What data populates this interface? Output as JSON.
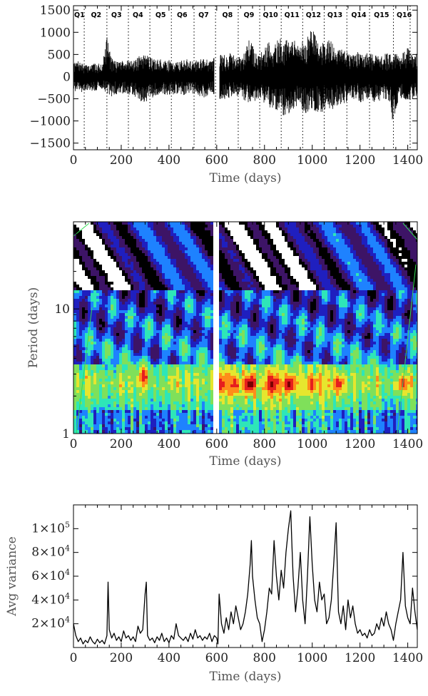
{
  "chart_data": [
    {
      "type": "line",
      "title": "",
      "xlabel": "Time (days)",
      "ylabel": "",
      "xlim": [
        0,
        1440
      ],
      "ylim": [
        -1650,
        1600
      ],
      "x_ticks": [
        0,
        200,
        400,
        600,
        800,
        1000,
        1200,
        1400
      ],
      "x_tick_labels": [
        "0",
        "200",
        "400",
        "600",
        "800",
        "1000",
        "1200",
        "1400"
      ],
      "y_ticks": [
        -1500,
        -1000,
        -500,
        0,
        500,
        1000,
        1500
      ],
      "y_tick_labels": [
        "−1500",
        "−1000",
        "−500",
        "0",
        "500",
        "1000",
        "1500"
      ],
      "quarter_boundaries": [
        45,
        140,
        230,
        320,
        410,
        505,
        595,
        690,
        780,
        870,
        960,
        1050,
        1145,
        1240,
        1340,
        1410
      ],
      "quarter_labels": [
        "Q1",
        "Q2",
        "Q3",
        "Q4",
        "Q5",
        "Q6",
        "Q7",
        "Q8",
        "Q9",
        "Q10",
        "Q11",
        "Q12",
        "Q13",
        "Q14",
        "Q15",
        "Q16"
      ],
      "quarter_label_x": [
        25,
        95,
        180,
        270,
        365,
        455,
        545,
        645,
        735,
        825,
        915,
        1005,
        1095,
        1195,
        1290,
        1385
      ],
      "series": [
        {
          "x": [
            0,
            20,
            40,
            60,
            80,
            100,
            120,
            140,
            160,
            180,
            200,
            220,
            240,
            260,
            280,
            300,
            320,
            340,
            360,
            380,
            400,
            420,
            440,
            460,
            480,
            500,
            520,
            540,
            560,
            580,
            600,
            620,
            640,
            660,
            680,
            700,
            720,
            740,
            760,
            780,
            800,
            820,
            840,
            860,
            880,
            900,
            920,
            940,
            960,
            980,
            1000,
            1020,
            1040,
            1060,
            1080,
            1100,
            1120,
            1140,
            1160,
            1180,
            1200,
            1220,
            1240,
            1260,
            1280,
            1300,
            1320,
            1340,
            1360,
            1380,
            1400,
            1420,
            1440
          ],
          "y_max": [
            300,
            350,
            280,
            260,
            300,
            280,
            320,
            900,
            420,
            350,
            380,
            400,
            350,
            380,
            500,
            650,
            450,
            380,
            400,
            350,
            380,
            320,
            350,
            380,
            400,
            350,
            380,
            450,
            400,
            350,
            550,
            500,
            480,
            550,
            420,
            500,
            600,
            900,
            550,
            500,
            650,
            800,
            750,
            850,
            900,
            800,
            850,
            750,
            800,
            900,
            1150,
            850,
            800,
            900,
            850,
            700,
            700,
            600,
            550,
            500,
            600,
            550,
            500,
            550,
            450,
            500,
            550,
            550,
            500,
            600,
            650,
            500,
            550
          ],
          "y_min": [
            -350,
            -300,
            -400,
            -300,
            -350,
            -300,
            -280,
            -380,
            -450,
            -400,
            -380,
            -400,
            -420,
            -500,
            -550,
            -600,
            -500,
            -450,
            -400,
            -450,
            -420,
            -400,
            -380,
            -420,
            -400,
            -380,
            -400,
            -500,
            -450,
            -400,
            -450,
            -550,
            -500,
            -480,
            -450,
            -500,
            -550,
            -600,
            -550,
            -500,
            -600,
            -700,
            -750,
            -800,
            -900,
            -850,
            -750,
            -700,
            -800,
            -850,
            -750,
            -800,
            -850,
            -700,
            -750,
            -700,
            -650,
            -600,
            -550,
            -500,
            -600,
            -550,
            -500,
            -600,
            -550,
            -500,
            -550,
            -1150,
            -550,
            -500,
            -600,
            -550,
            -400
          ]
        }
      ]
    },
    {
      "type": "heatmap",
      "title": "",
      "xlabel": "Time (days)",
      "ylabel": "Period (days)",
      "xlim": [
        0,
        1440
      ],
      "yscale": "log",
      "ylim": [
        1,
        50
      ],
      "x_ticks": [
        0,
        200,
        400,
        600,
        800,
        1000,
        1200,
        1400
      ],
      "x_tick_labels": [
        "0",
        "200",
        "400",
        "600",
        "800",
        "1000",
        "1200",
        "1400"
      ],
      "y_ticks": [
        1,
        10
      ],
      "y_tick_labels": [
        "1",
        "10"
      ],
      "colorscale": [
        "#ffffff",
        "#000000",
        "#3d1466",
        "#1f1fbf",
        "#1e82ff",
        "#2ee6b8",
        "#7fe05a",
        "#e6e62e",
        "#ff8c1a",
        "#e61e1e",
        "#7a0000"
      ],
      "gap_x": [
        590,
        615
      ],
      "hot_spots": [
        {
          "x": 295,
          "period": 2.9,
          "level": 9
        },
        {
          "x": 620,
          "period": 2.5,
          "level": 9
        },
        {
          "x": 675,
          "period": 2.5,
          "level": 9
        },
        {
          "x": 740,
          "period": 2.5,
          "level": 10
        },
        {
          "x": 830,
          "period": 2.5,
          "level": 10
        },
        {
          "x": 905,
          "period": 2.5,
          "level": 10
        },
        {
          "x": 1000,
          "period": 2.5,
          "level": 9
        },
        {
          "x": 1110,
          "period": 2.5,
          "level": 9
        },
        {
          "x": 1380,
          "period": 2.5,
          "level": 9
        }
      ]
    },
    {
      "type": "line",
      "title": "",
      "xlabel": "Time (days)",
      "ylabel": "Avg variance",
      "xlim": [
        0,
        1440
      ],
      "ylim": [
        0,
        120000
      ],
      "x_ticks": [
        0,
        200,
        400,
        600,
        800,
        1000,
        1200,
        1400
      ],
      "x_tick_labels": [
        "0",
        "200",
        "400",
        "600",
        "800",
        "1000",
        "1200",
        "1400"
      ],
      "y_ticks": [
        20000,
        40000,
        60000,
        80000,
        100000
      ],
      "y_tick_mantissas": [
        "2",
        "4",
        "6",
        "8",
        "1"
      ],
      "y_tick_exponents": [
        "4",
        "4",
        "4",
        "4",
        "5"
      ],
      "series": [
        {
          "x": [
            0,
            10,
            20,
            30,
            40,
            50,
            60,
            70,
            80,
            90,
            100,
            110,
            120,
            130,
            140,
            145,
            150,
            160,
            170,
            180,
            190,
            200,
            210,
            220,
            230,
            240,
            250,
            260,
            270,
            280,
            290,
            300,
            305,
            310,
            320,
            330,
            340,
            350,
            360,
            370,
            380,
            390,
            400,
            410,
            420,
            430,
            440,
            450,
            460,
            470,
            480,
            490,
            500,
            510,
            520,
            530,
            540,
            550,
            560,
            570,
            580,
            590,
            600,
            605,
            610,
            620,
            630,
            640,
            650,
            660,
            670,
            680,
            690,
            700,
            710,
            720,
            730,
            740,
            745,
            750,
            760,
            770,
            780,
            790,
            800,
            810,
            820,
            830,
            840,
            850,
            860,
            870,
            880,
            890,
            900,
            910,
            915,
            920,
            930,
            940,
            950,
            960,
            970,
            980,
            990,
            1000,
            1010,
            1020,
            1030,
            1040,
            1050,
            1060,
            1070,
            1080,
            1090,
            1100,
            1110,
            1120,
            1130,
            1140,
            1150,
            1160,
            1170,
            1180,
            1190,
            1200,
            1210,
            1220,
            1230,
            1240,
            1250,
            1260,
            1270,
            1280,
            1290,
            1300,
            1310,
            1320,
            1330,
            1340,
            1350,
            1360,
            1370,
            1380,
            1390,
            1400,
            1410,
            1420,
            1430,
            1440
          ],
          "y": [
            20000,
            10000,
            5000,
            8000,
            3000,
            6000,
            4000,
            9000,
            5000,
            3000,
            7000,
            4000,
            6000,
            3000,
            10000,
            55000,
            15000,
            8000,
            12000,
            6000,
            9000,
            5000,
            14000,
            8000,
            10000,
            6000,
            9000,
            5000,
            18000,
            12000,
            15000,
            45000,
            55000,
            10000,
            6000,
            8000,
            4000,
            9000,
            6000,
            12000,
            5000,
            8000,
            4000,
            10000,
            7000,
            20000,
            10000,
            8000,
            6000,
            9000,
            5000,
            12000,
            7000,
            15000,
            8000,
            10000,
            6000,
            9000,
            7000,
            12000,
            5000,
            10000,
            8000,
            3000,
            45000,
            20000,
            12000,
            25000,
            15000,
            30000,
            20000,
            35000,
            25000,
            15000,
            20000,
            30000,
            45000,
            70000,
            90000,
            60000,
            40000,
            25000,
            20000,
            5000,
            15000,
            30000,
            50000,
            45000,
            90000,
            60000,
            40000,
            65000,
            50000,
            80000,
            100000,
            115000,
            85000,
            60000,
            30000,
            50000,
            80000,
            40000,
            20000,
            60000,
            110000,
            70000,
            40000,
            30000,
            55000,
            40000,
            45000,
            20000,
            25000,
            40000,
            70000,
            105000,
            30000,
            20000,
            35000,
            15000,
            40000,
            25000,
            35000,
            20000,
            12000,
            15000,
            10000,
            12000,
            8000,
            15000,
            10000,
            12000,
            20000,
            15000,
            25000,
            18000,
            30000,
            20000,
            15000,
            6000,
            20000,
            30000,
            40000,
            80000,
            35000,
            25000,
            20000,
            50000,
            30000,
            15000
          ]
        }
      ]
    }
  ]
}
